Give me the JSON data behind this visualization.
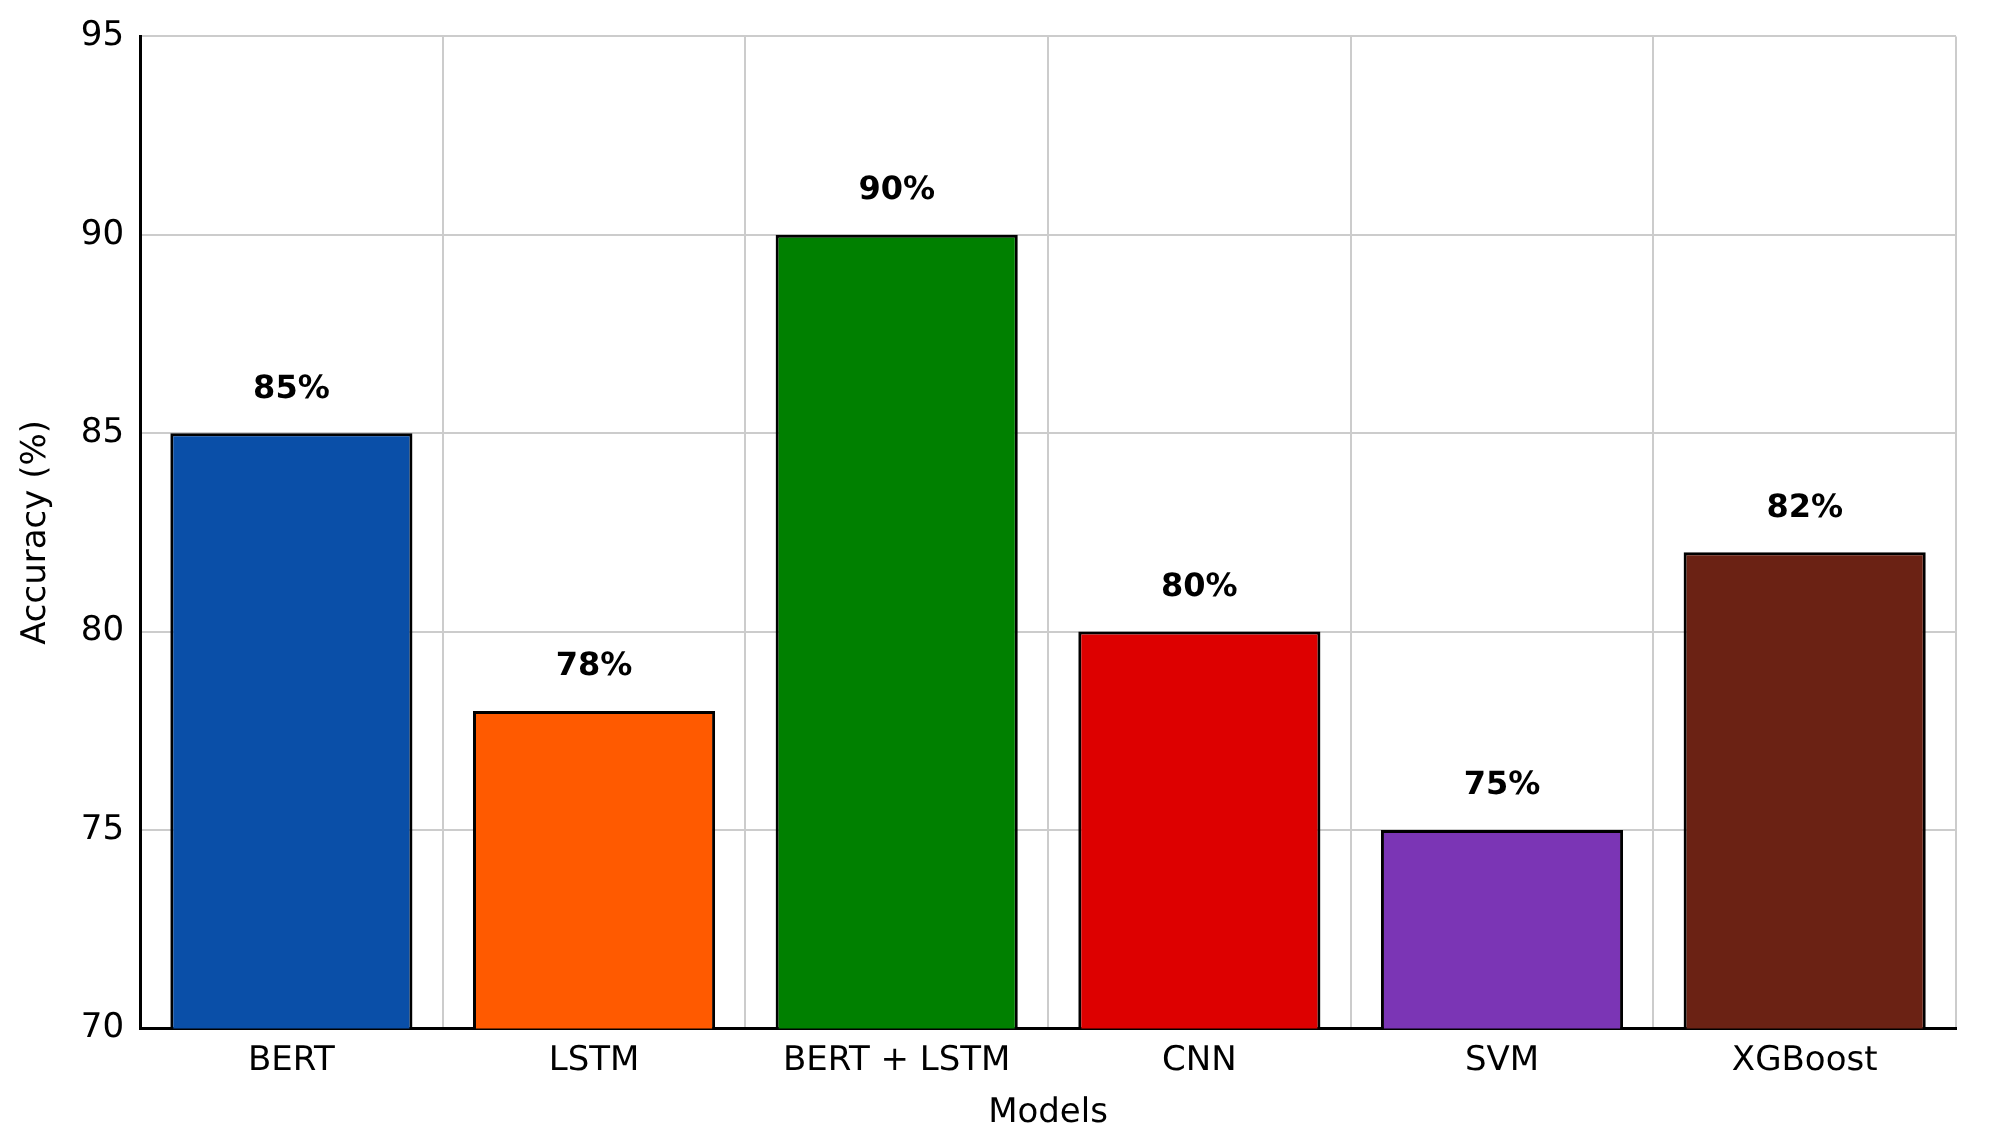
{
  "chart_data": {
    "type": "bar",
    "xlabel": "Models",
    "ylabel": "Accuracy (%)",
    "categories": [
      "BERT",
      "LSTM",
      "BERT + LSTM",
      "CNN",
      "SVM",
      "XGBoost"
    ],
    "values": [
      85,
      78,
      90,
      80,
      75,
      82
    ],
    "colors": [
      "#0a4fa8",
      "#ff5a00",
      "#008000",
      "#dd0000",
      "#7b35b5",
      "#6b2214"
    ],
    "value_labels": [
      "85%",
      "78%",
      "90%",
      "80%",
      "75%",
      "82%"
    ],
    "ylim": [
      70,
      95
    ],
    "yticks": [
      70,
      75,
      80,
      85,
      90,
      95
    ],
    "grid": true
  }
}
